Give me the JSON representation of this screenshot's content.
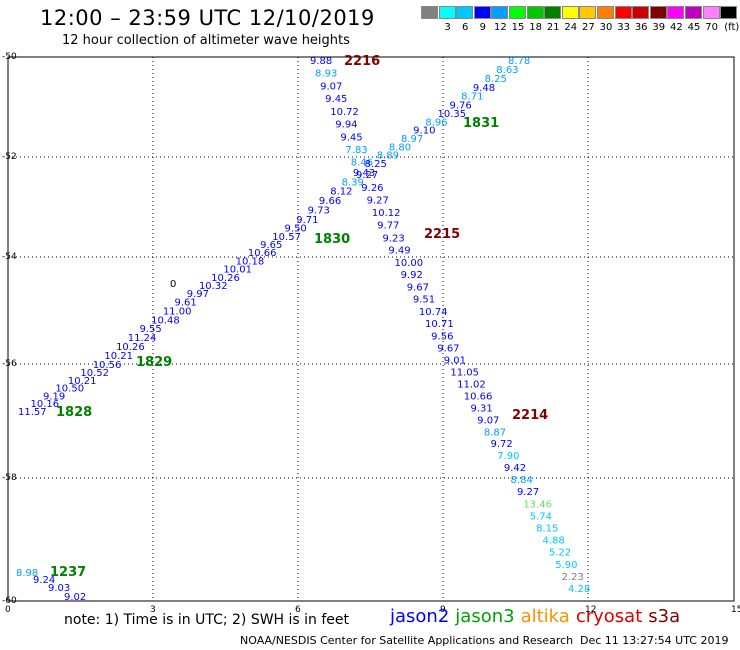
{
  "header": {
    "title": "12:00 – 23:59 UTC 12/10/2019",
    "subtitle": "12 hour collection of altimeter wave heights"
  },
  "legend": {
    "unit": "(ft)",
    "items": [
      {
        "label": "",
        "color": "#808080"
      },
      {
        "label": "3",
        "color": "#00ffff"
      },
      {
        "label": "6",
        "color": "#00c8ff"
      },
      {
        "label": "9",
        "color": "#0000ff"
      },
      {
        "label": "12",
        "color": "#00a0ff"
      },
      {
        "label": "15",
        "color": "#00ff00"
      },
      {
        "label": "18",
        "color": "#00c800"
      },
      {
        "label": "21",
        "color": "#008000"
      },
      {
        "label": "24",
        "color": "#ffff00"
      },
      {
        "label": "27",
        "color": "#ffc800"
      },
      {
        "label": "30",
        "color": "#ff8000"
      },
      {
        "label": "33",
        "color": "#ff0000"
      },
      {
        "label": "36",
        "color": "#c80000"
      },
      {
        "label": "39",
        "color": "#800000"
      },
      {
        "label": "42",
        "color": "#ff00ff"
      },
      {
        "label": "45",
        "color": "#c000c0"
      },
      {
        "label": "70",
        "color": "#ff80ff"
      },
      {
        "label": "",
        "color": "#000000"
      }
    ]
  },
  "axes": {
    "lat_labels": [
      "-50",
      "-52",
      "-54",
      "-56",
      "-58",
      "-60"
    ],
    "lon_labels": [
      "0",
      "3",
      "6",
      "9",
      "12",
      "15"
    ]
  },
  "passes": [
    {
      "name": "2216",
      "color": "#800000"
    },
    {
      "name": "2215",
      "color": "#800000"
    },
    {
      "name": "2214",
      "color": "#800000"
    },
    {
      "name": "1831",
      "color": "#008000"
    },
    {
      "name": "1830",
      "color": "#008000"
    },
    {
      "name": "1829",
      "color": "#008000"
    },
    {
      "name": "1828",
      "color": "#008000"
    },
    {
      "name": "1237",
      "color": "#008000"
    }
  ],
  "marker_text": "0",
  "track_a": [
    "9.88",
    "8.93",
    "9.07",
    "9.45",
    "10.72",
    "9.94",
    "9.45",
    "7.83",
    "8.46",
    "9.27",
    "9.26",
    "9.27",
    "10.12",
    "9.77",
    "9.23",
    "9.49",
    "10.00",
    "9.92",
    "9.67",
    "9.51",
    "10.74",
    "10.71",
    "9.56",
    "9.67",
    "9.01",
    "11.05",
    "11.02",
    "10.66",
    "9.31",
    "9.07",
    "8.87",
    "9.72",
    "7.90",
    "9.42",
    "8.84",
    "9.27",
    "13.46",
    "5.74",
    "8.15",
    "4.88",
    "5.22",
    "5.90",
    "2.23",
    "4.28"
  ],
  "track_a_colors": [
    "#0000ff",
    "#00a0ff",
    "#0000ff",
    "#0000ff",
    "#0000ff",
    "#0000ff",
    "#0000ff",
    "#00a0ff",
    "#00a0ff",
    "#0000ff",
    "#0000ff",
    "#0000ff",
    "#0000ff",
    "#0000ff",
    "#0000ff",
    "#0000ff",
    "#0000ff",
    "#0000ff",
    "#0000ff",
    "#0000ff",
    "#0000ff",
    "#0000ff",
    "#0000ff",
    "#0000ff",
    "#0000ff",
    "#0000ff",
    "#0000ff",
    "#0000ff",
    "#0000ff",
    "#0000ff",
    "#00a0ff",
    "#0000ff",
    "#00c8ff",
    "#0000ff",
    "#00a0ff",
    "#0000ff",
    "#66e066",
    "#00c8ff",
    "#00c8ff",
    "#00c8ff",
    "#00c8ff",
    "#00c8ff",
    "#808080",
    "#00c8ff"
  ],
  "track_b": [
    "11.57",
    "10.16",
    "9.19",
    "10.50",
    "10.21",
    "10.52",
    "10.56",
    "10.21",
    "10.26",
    "11.24",
    "9.55",
    "10.48",
    "11.00",
    "9.61",
    "9.97",
    "10.32",
    "10.26",
    "10.01",
    "10.18",
    "10.66",
    "9.65",
    "10.57",
    "9.50",
    "9.71",
    "9.73",
    "9.66",
    "8.12",
    "8.39",
    "9.43",
    "8.25",
    "8.89",
    "8.80",
    "8.97",
    "9.10",
    "8.96",
    "10.35",
    "9.76",
    "8.71",
    "9.48",
    "8.25",
    "8.63",
    "8.78"
  ],
  "track_b_colors": [
    "#0000ff",
    "#0000ff",
    "#0000ff",
    "#0000ff",
    "#0000ff",
    "#0000ff",
    "#0000ff",
    "#0000ff",
    "#0000ff",
    "#0000ff",
    "#0000ff",
    "#0000ff",
    "#0000ff",
    "#0000ff",
    "#0000ff",
    "#0000ff",
    "#0000ff",
    "#0000ff",
    "#0000ff",
    "#0000ff",
    "#0000ff",
    "#0000ff",
    "#0000ff",
    "#0000ff",
    "#0000ff",
    "#0000ff",
    "#0000ff",
    "#00a0ff",
    "#0000ff",
    "#0000ff",
    "#00a0ff",
    "#00a0ff",
    "#00a0ff",
    "#0000ff",
    "#00a0ff",
    "#0000ff",
    "#0000ff",
    "#00a0ff",
    "#0000ff",
    "#00a0ff",
    "#00a0ff",
    "#00a0ff"
  ],
  "track_c": [
    "8.98",
    "9.24",
    "9.03",
    "9.02"
  ],
  "track_c_colors": [
    "#00a0ff",
    "#0000ff",
    "#0000ff",
    "#0000ff"
  ],
  "footer": {
    "note": "note:  1) Time is in UTC; 2) SWH is in feet",
    "satellites": [
      {
        "name": "jason2",
        "color": "#0000ff"
      },
      {
        "name": "jason3",
        "color": "#00a000"
      },
      {
        "name": "altika",
        "color": "#ff9000"
      },
      {
        "name": "cryosat",
        "color": "#e00000"
      },
      {
        "name": "s3a",
        "color": "#800000"
      }
    ],
    "credit": "NOAA/NESDIS Center for Satellite Applications and Research",
    "timestamp": "Dec 11 13:27:54 UTC 2019"
  }
}
